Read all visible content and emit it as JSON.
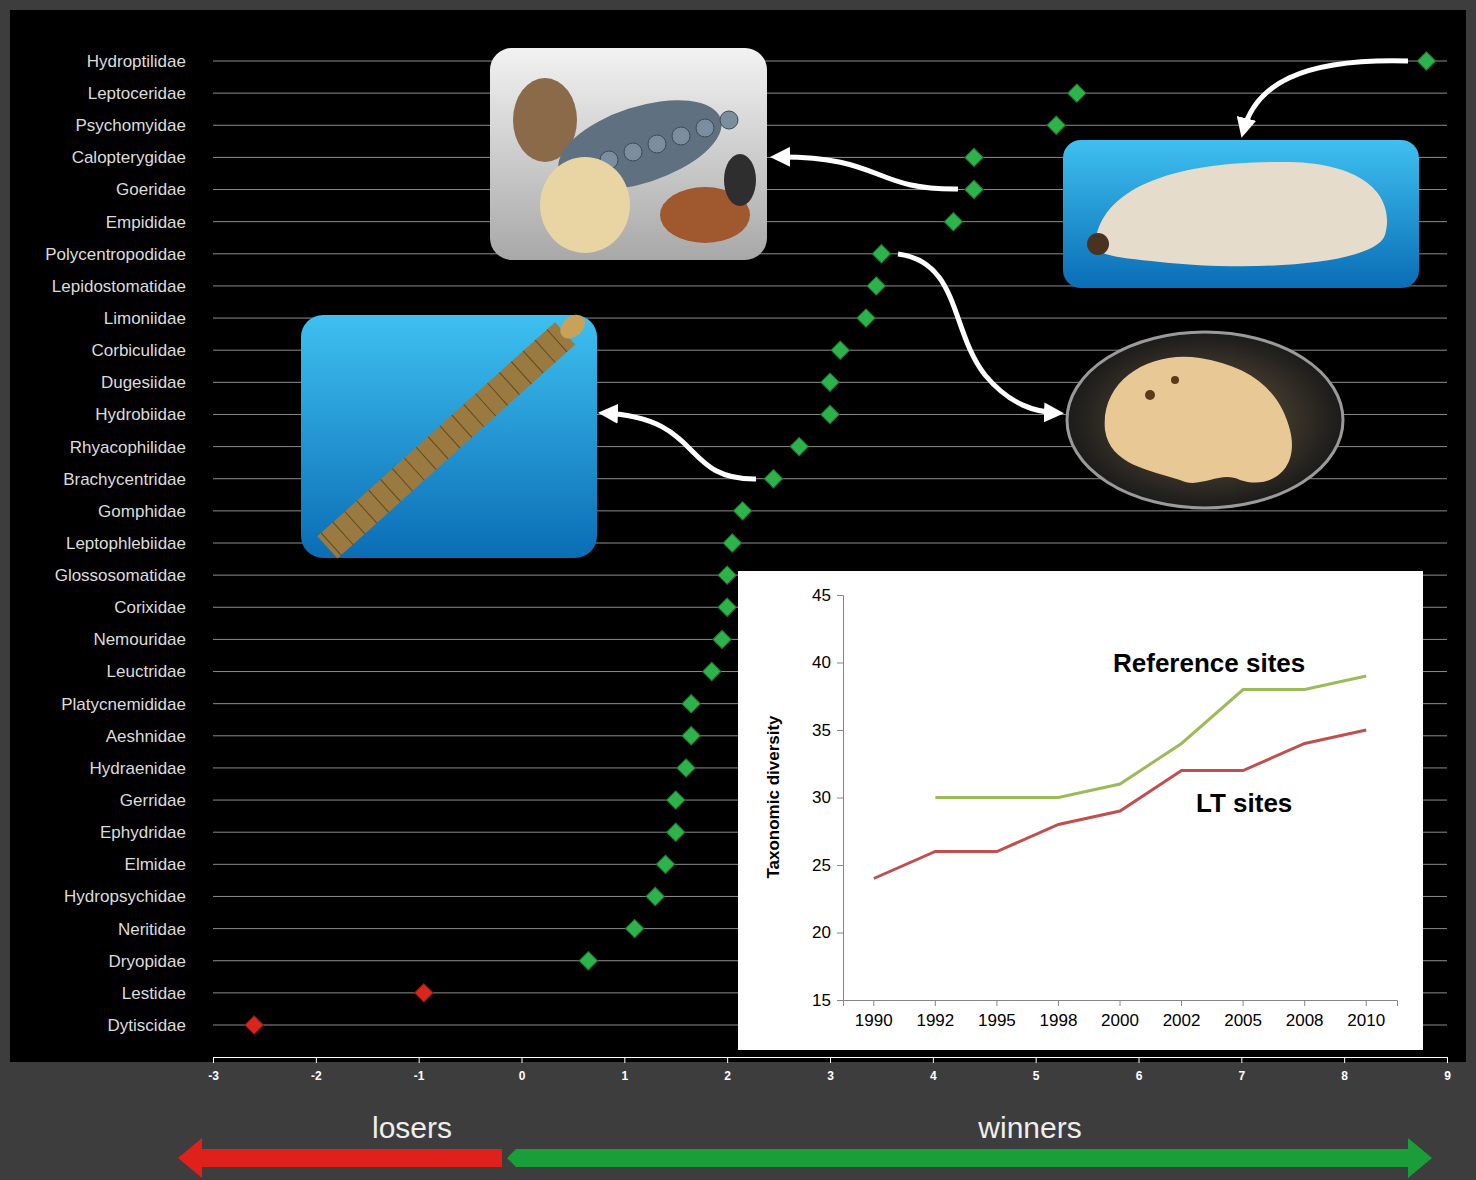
{
  "chart_data": [
    {
      "type": "scatter",
      "orientation": "horizontal",
      "categories": [
        "Hydroptilidae",
        "Leptoceridae",
        "Psychomyidae",
        "Calopterygidae",
        "Goeridae",
        "Empididae",
        "Polycentropodidae",
        "Lepidostomatidae",
        "Limoniidae",
        "Corbiculidae",
        "Dugesiidae",
        "Hydrobiidae",
        "Rhyacophilidae",
        "Brachycentridae",
        "Gomphidae",
        "Leptophlebiidae",
        "Glossosomatidae",
        "Corixidae",
        "Nemouridae",
        "Leuctridae",
        "Platycnemididae",
        "Aeshnidae",
        "Hydraenidae",
        "Gerridae",
        "Ephydridae",
        "Elmidae",
        "Hydropsychidae",
        "Neritidae",
        "Dryopidae",
        "Lestidae",
        "Dytiscidae"
      ],
      "values": [
        8.8,
        5.4,
        5.2,
        4.4,
        4.4,
        4.2,
        3.5,
        3.45,
        3.35,
        3.1,
        3.0,
        3.0,
        2.7,
        2.45,
        2.15,
        2.05,
        2.0,
        2.0,
        1.95,
        1.85,
        1.65,
        1.65,
        1.6,
        1.5,
        1.5,
        1.4,
        1.3,
        1.1,
        0.65,
        -0.95,
        -2.6
      ],
      "colors": [
        "#2db34a",
        "#2db34a",
        "#2db34a",
        "#2db34a",
        "#2db34a",
        "#2db34a",
        "#2db34a",
        "#2db34a",
        "#2db34a",
        "#2db34a",
        "#2db34a",
        "#2db34a",
        "#2db34a",
        "#2db34a",
        "#2db34a",
        "#2db34a",
        "#2db34a",
        "#2db34a",
        "#2db34a",
        "#2db34a",
        "#2db34a",
        "#2db34a",
        "#2db34a",
        "#2db34a",
        "#2db34a",
        "#2db34a",
        "#2db34a",
        "#2db34a",
        "#2db34a",
        "#d9261c",
        "#d9261c"
      ],
      "marker": "diamond",
      "xlim": [
        -3,
        9
      ],
      "xticks": [
        -3,
        -2,
        -1,
        0,
        1,
        2,
        3,
        4,
        5,
        6,
        7,
        8,
        9
      ],
      "grid": true,
      "annotations": [
        "losers",
        "winners"
      ]
    },
    {
      "type": "line",
      "categories": [
        "1990",
        "1992",
        "1995",
        "1998",
        "2000",
        "2002",
        "2005",
        "2008",
        "2010"
      ],
      "series": [
        {
          "name": "Reference sites",
          "color": "#9bbb59",
          "values": [
            null,
            30,
            30,
            30,
            31,
            34,
            38,
            38,
            39
          ]
        },
        {
          "name": "LT sites",
          "color": "#c0504d",
          "values": [
            24,
            26,
            26,
            28,
            29,
            32,
            32,
            34,
            35
          ]
        }
      ],
      "ylabel": "Taxonomic diversity",
      "ylim": [
        15,
        45
      ],
      "yticks": [
        15,
        20,
        25,
        30,
        35,
        40,
        45
      ],
      "grid": false
    }
  ]
}
